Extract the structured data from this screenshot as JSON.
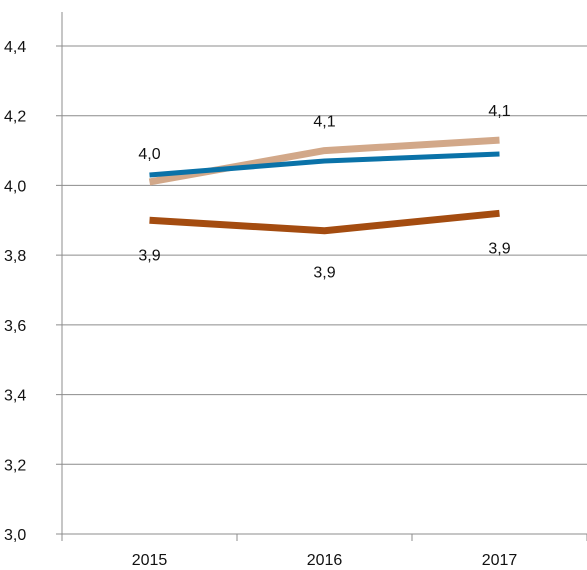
{
  "chart_data": {
    "type": "line",
    "categories": [
      "2015",
      "2016",
      "2017"
    ],
    "ylim": [
      3.0,
      4.4
    ],
    "y_ticks": [
      "3,0",
      "3,2",
      "3,4",
      "3,6",
      "3,8",
      "4,0",
      "4,2",
      "4,4"
    ],
    "grid": true,
    "legend": "none",
    "series": [
      {
        "color": "#D2A889",
        "values": [
          4.01,
          4.1,
          4.13
        ],
        "labels": [
          "4,0",
          "4,1",
          "4,1"
        ],
        "label_position": "above"
      },
      {
        "color": "#0A72A8",
        "values": [
          4.03,
          4.07,
          4.09
        ],
        "labels": [],
        "label_position": "none"
      },
      {
        "color": "#A44C10",
        "values": [
          3.9,
          3.87,
          3.92
        ],
        "labels": [
          "3,9",
          "3,9",
          "3,9"
        ],
        "label_position": "below"
      }
    ]
  }
}
